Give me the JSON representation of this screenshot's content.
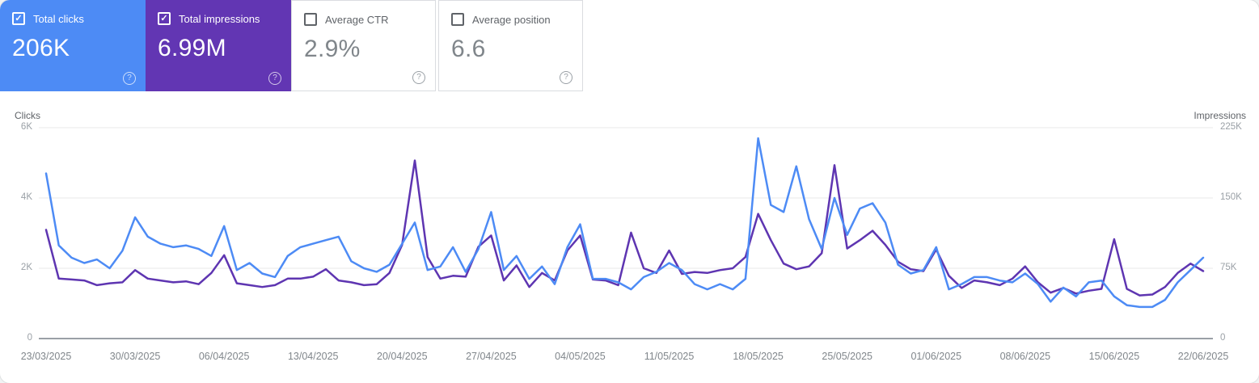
{
  "cards": [
    {
      "label": "Total clicks",
      "value": "206K",
      "selected": true,
      "color": "#4d8bf5"
    },
    {
      "label": "Total impressions",
      "value": "6.99M",
      "selected": true,
      "color": "#6236b3"
    },
    {
      "label": "Average CTR",
      "value": "2.9%",
      "selected": false,
      "color": ""
    },
    {
      "label": "Average position",
      "value": "6.6",
      "selected": false,
      "color": ""
    }
  ],
  "icons": {
    "help": "?",
    "check": "✓"
  },
  "chart_data": {
    "type": "line",
    "grid": true,
    "legend_position": "none",
    "x_tick_labels": [
      "23/03/2025",
      "30/03/2025",
      "06/04/2025",
      "13/04/2025",
      "20/04/2025",
      "27/04/2025",
      "04/05/2025",
      "11/05/2025",
      "18/05/2025",
      "25/05/2025",
      "01/06/2025",
      "08/06/2025",
      "15/06/2025",
      "22/06/2025"
    ],
    "left_axis": {
      "title": "Clicks",
      "ticks": [
        "6K",
        "4K",
        "2K",
        "0"
      ],
      "max": 6000
    },
    "right_axis": {
      "title": "Impressions",
      "ticks": [
        "225K",
        "150K",
        "75K",
        "0"
      ],
      "max": 225000
    },
    "series": [
      {
        "name": "Total clicks",
        "axis": "left",
        "color": "#4d8bf5",
        "values": [
          4700,
          2650,
          2300,
          2150,
          2250,
          2000,
          2500,
          3450,
          2900,
          2700,
          2600,
          2650,
          2550,
          2350,
          3200,
          1950,
          2150,
          1850,
          1750,
          2350,
          2600,
          2700,
          2800,
          2900,
          2200,
          2000,
          1900,
          2100,
          2700,
          3300,
          1950,
          2050,
          2600,
          1900,
          2550,
          3600,
          1950,
          2350,
          1700,
          2050,
          1550,
          2600,
          3250,
          1700,
          1700,
          1600,
          1400,
          1750,
          1900,
          2150,
          1950,
          1550,
          1400,
          1550,
          1400,
          1700,
          5700,
          3800,
          3600,
          4900,
          3400,
          2550,
          4000,
          2950,
          3700,
          3850,
          3300,
          2100,
          1850,
          1950,
          2600,
          1400,
          1550,
          1750,
          1750,
          1650,
          1600,
          1850,
          1550,
          1050,
          1450,
          1200,
          1600,
          1650,
          1200,
          950,
          900,
          900,
          1100,
          1600,
          1950,
          2300
        ]
      },
      {
        "name": "Total impressions",
        "axis": "right",
        "color": "#5e35b1",
        "values": [
          116000,
          64000,
          63000,
          62000,
          57000,
          59000,
          60000,
          73000,
          64000,
          62000,
          60000,
          61000,
          58000,
          70000,
          89000,
          59000,
          57000,
          55000,
          57000,
          64000,
          64000,
          66000,
          74000,
          62000,
          60000,
          57000,
          58000,
          70000,
          100000,
          190000,
          87000,
          64000,
          67000,
          66000,
          98000,
          110000,
          62000,
          78000,
          55000,
          70000,
          62000,
          94000,
          110000,
          63000,
          62000,
          57000,
          113000,
          75000,
          70000,
          94000,
          69000,
          71000,
          70000,
          73000,
          75000,
          87000,
          133000,
          105000,
          80000,
          74000,
          77000,
          91000,
          185000,
          96000,
          105000,
          115000,
          100000,
          82000,
          74000,
          72000,
          95000,
          67000,
          54000,
          62000,
          60000,
          57000,
          64000,
          77000,
          60000,
          49000,
          54000,
          48000,
          51000,
          53000,
          106000,
          53000,
          46000,
          47000,
          55000,
          70000,
          80000,
          72000
        ]
      }
    ]
  }
}
